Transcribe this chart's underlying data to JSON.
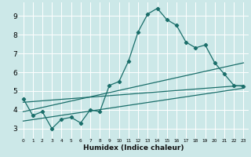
{
  "xlabel": "Humidex (Indice chaleur)",
  "bg_color": "#cce8e8",
  "grid_color": "#ffffff",
  "line_color": "#1a6e6a",
  "xlim": [
    -0.5,
    23.5
  ],
  "ylim": [
    2.5,
    9.7
  ],
  "xticks": [
    0,
    1,
    2,
    3,
    4,
    5,
    6,
    7,
    8,
    9,
    10,
    11,
    12,
    13,
    14,
    15,
    16,
    17,
    18,
    19,
    20,
    21,
    22,
    23
  ],
  "yticks": [
    3,
    4,
    5,
    6,
    7,
    8,
    9
  ],
  "series1_x": [
    0,
    1,
    2,
    3,
    4,
    5,
    6,
    7,
    8,
    9,
    10,
    11,
    12,
    13,
    14,
    15,
    16,
    17,
    18,
    19,
    20,
    21,
    22,
    23
  ],
  "series1_y": [
    4.6,
    3.7,
    3.9,
    3.0,
    3.5,
    3.6,
    3.3,
    4.0,
    3.9,
    5.3,
    5.5,
    6.6,
    8.15,
    9.1,
    9.4,
    8.8,
    8.5,
    7.6,
    7.3,
    7.45,
    6.5,
    5.9,
    5.3,
    5.25
  ],
  "series2_x": [
    0,
    23
  ],
  "series2_y": [
    3.9,
    6.5
  ],
  "series3_x": [
    0,
    23
  ],
  "series3_y": [
    3.4,
    5.15
  ],
  "series4_x": [
    0,
    23
  ],
  "series4_y": [
    4.4,
    5.3
  ]
}
